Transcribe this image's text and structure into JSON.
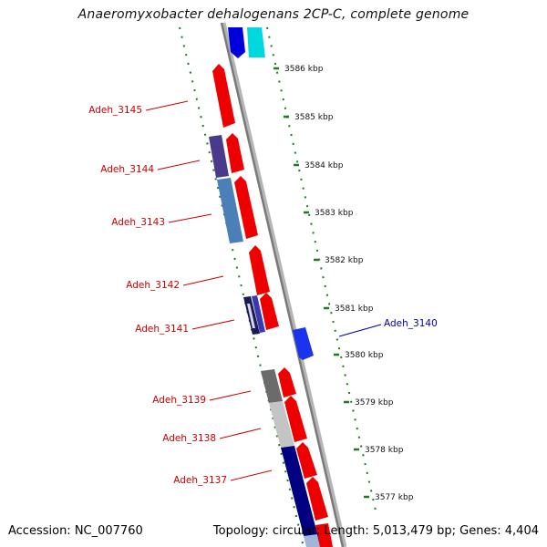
{
  "title": "Anaeromyxobacter dehalogenans 2CP-C, complete genome",
  "footer": {
    "accession": "Accession: NC_007760",
    "summary": "Topology: circular; Length: 5,013,479 bp; Genes: 4,404"
  },
  "colors": {
    "label_red": "#cc0000",
    "label_blue": "#0000aa",
    "tick_green": "#1d7a1d",
    "backbone": "#888888"
  },
  "ticks": [
    {
      "label": "3586 kbp"
    },
    {
      "label": "3585 kbp"
    },
    {
      "label": "3584 kbp"
    },
    {
      "label": "3583 kbp"
    },
    {
      "label": "3582 kbp"
    },
    {
      "label": "3581 kbp"
    },
    {
      "label": "3580 kbp"
    },
    {
      "label": "3579 kbp"
    },
    {
      "label": "3578 kbp"
    },
    {
      "label": "3577 kbp"
    }
  ],
  "genes": [
    {
      "label": "Adeh_3145"
    },
    {
      "label": "Adeh_3144"
    },
    {
      "label": "Adeh_3143"
    },
    {
      "label": "Adeh_3142"
    },
    {
      "label": "Adeh_3141"
    },
    {
      "label": "Adeh_3140"
    },
    {
      "label": "Adeh_3139"
    },
    {
      "label": "Adeh_3138"
    },
    {
      "label": "Adeh_3137"
    }
  ]
}
